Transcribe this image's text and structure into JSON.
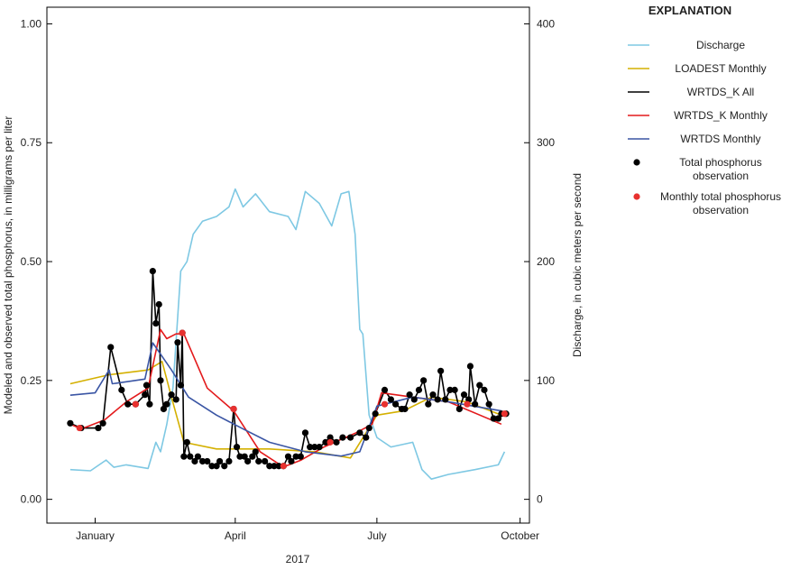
{
  "chart_data": {
    "type": "line",
    "x_label": "2017",
    "y_label": "Modeled and observed total phosphorus, in milligrams per liter",
    "y2_label": "Discharge, in cubic meters per second",
    "legend_title": "EXPLANATION",
    "legend": "right",
    "xlim": [
      -31,
      279
    ],
    "xticks": [
      {
        "value": 0,
        "label": "January"
      },
      {
        "value": 90,
        "label": "April"
      },
      {
        "value": 181,
        "label": "July"
      },
      {
        "value": 273,
        "label": "October"
      }
    ],
    "ylim": [
      -0.05,
      1.035
    ],
    "yticks": [
      {
        "value": 0,
        "label": "0.00"
      },
      {
        "value": 0.25,
        "label": "0.25"
      },
      {
        "value": 0.5,
        "label": "0.50"
      },
      {
        "value": 0.75,
        "label": "0.75"
      },
      {
        "value": 1,
        "label": "1.00"
      }
    ],
    "y2lim": [
      -20,
      414
    ],
    "y2ticks": [
      0,
      100,
      200,
      300,
      400
    ],
    "series": [
      {
        "name": "Discharge",
        "color": "#7ec8e3",
        "style": "line",
        "axis": "y2",
        "x": [
          -16,
          -3,
          7,
          12,
          20,
          34,
          39,
          42,
          46,
          50,
          55,
          59,
          63,
          69,
          78,
          86,
          90,
          95,
          103,
          112,
          124,
          129,
          135,
          144,
          152,
          158,
          163,
          167,
          170,
          172,
          176,
          181,
          190,
          204,
          210,
          216,
          227,
          244,
          259,
          263
        ],
        "values": [
          25,
          24,
          33,
          27,
          29,
          26,
          48,
          40,
          63,
          94,
          192,
          200,
          223,
          234,
          238,
          246,
          261,
          246,
          257,
          242,
          238,
          227,
          259,
          249,
          230,
          257,
          259,
          223,
          143,
          139,
          71,
          52,
          44,
          48,
          25,
          17,
          21,
          25,
          29,
          40
        ]
      },
      {
        "name": "LOADEST Monthly",
        "color": "#d4b000",
        "style": "line",
        "x": [
          -16,
          9,
          34,
          43,
          49,
          57,
          78,
          112,
          141,
          164,
          181,
          198,
          216,
          239,
          261
        ],
        "values": [
          0.243,
          0.262,
          0.272,
          0.29,
          0.215,
          0.12,
          0.106,
          0.106,
          0.1,
          0.087,
          0.177,
          0.186,
          0.215,
          0.205,
          0.177
        ]
      },
      {
        "name": "WRTDS_K All",
        "color": "#000000",
        "style": "line",
        "x": [
          -16,
          -9,
          2,
          5,
          10,
          17,
          21,
          26,
          32,
          33,
          35,
          37,
          39,
          41,
          42,
          44,
          46,
          49,
          52,
          53,
          55,
          56,
          57,
          59,
          61,
          64,
          66,
          69,
          72,
          75,
          78,
          80,
          83,
          86,
          89,
          91,
          93,
          96,
          98,
          101,
          103,
          105,
          109,
          112,
          115,
          118,
          121,
          124,
          126,
          129,
          132,
          135,
          138,
          141,
          144,
          148,
          151,
          155,
          159,
          164,
          170,
          174,
          176,
          180,
          186,
          190,
          193,
          197,
          199,
          202,
          205,
          208,
          211,
          214,
          217,
          220,
          222,
          225,
          228,
          231,
          234,
          237,
          240,
          241,
          244,
          247,
          250,
          253,
          256,
          259,
          261,
          264
        ],
        "values": [
          0.16,
          0.15,
          0.15,
          0.16,
          0.32,
          0.23,
          0.2,
          0.2,
          0.22,
          0.24,
          0.2,
          0.48,
          0.37,
          0.41,
          0.25,
          0.19,
          0.2,
          0.22,
          0.21,
          0.33,
          0.24,
          0.35,
          0.09,
          0.12,
          0.09,
          0.08,
          0.09,
          0.08,
          0.08,
          0.07,
          0.07,
          0.08,
          0.07,
          0.08,
          0.19,
          0.11,
          0.09,
          0.09,
          0.08,
          0.09,
          0.1,
          0.08,
          0.08,
          0.07,
          0.07,
          0.07,
          0.07,
          0.09,
          0.08,
          0.09,
          0.09,
          0.14,
          0.11,
          0.11,
          0.11,
          0.12,
          0.13,
          0.12,
          0.13,
          0.13,
          0.14,
          0.13,
          0.15,
          0.18,
          0.23,
          0.21,
          0.2,
          0.19,
          0.19,
          0.22,
          0.21,
          0.23,
          0.25,
          0.2,
          0.22,
          0.21,
          0.27,
          0.21,
          0.23,
          0.23,
          0.19,
          0.22,
          0.21,
          0.28,
          0.2,
          0.24,
          0.23,
          0.2,
          0.17,
          0.17,
          0.18,
          0.18
        ]
      },
      {
        "name": "WRTDS_K Monthly",
        "color": "#e31a1c",
        "style": "line",
        "x": [
          -16,
          -9,
          6,
          20,
          34,
          42,
          46,
          52,
          57,
          72,
          89,
          106,
          121,
          132,
          147,
          167,
          178,
          184,
          204,
          227,
          261
        ],
        "values": [
          0.158,
          0.148,
          0.167,
          0.205,
          0.234,
          0.357,
          0.338,
          0.348,
          0.348,
          0.234,
          0.186,
          0.1,
          0.068,
          0.082,
          0.11,
          0.139,
          0.158,
          0.224,
          0.215,
          0.205,
          0.158
        ]
      },
      {
        "name": "WRTDS Monthly",
        "color": "#3a55a4",
        "style": "line",
        "x": [
          -16,
          0,
          9,
          11,
          32,
          37,
          49,
          60,
          78,
          95,
          112,
          135,
          158,
          170,
          181,
          204,
          227,
          261
        ],
        "values": [
          0.219,
          0.224,
          0.272,
          0.243,
          0.253,
          0.329,
          0.272,
          0.215,
          0.177,
          0.148,
          0.12,
          0.1,
          0.091,
          0.1,
          0.196,
          0.215,
          0.205,
          0.186
        ]
      },
      {
        "name": "Total phosphorus observation",
        "color": "#000000",
        "style": "marker",
        "x": [
          -16,
          -9,
          2,
          5,
          10,
          17,
          21,
          26,
          32,
          33,
          35,
          37,
          39,
          41,
          42,
          44,
          46,
          49,
          52,
          53,
          55,
          56,
          57,
          59,
          61,
          64,
          66,
          69,
          72,
          75,
          78,
          80,
          83,
          86,
          89,
          91,
          93,
          96,
          98,
          101,
          103,
          105,
          109,
          112,
          115,
          118,
          121,
          124,
          126,
          129,
          132,
          135,
          138,
          141,
          144,
          148,
          151,
          155,
          159,
          164,
          170,
          174,
          176,
          180,
          186,
          190,
          193,
          197,
          199,
          202,
          205,
          208,
          211,
          214,
          217,
          220,
          222,
          225,
          228,
          231,
          234,
          237,
          240,
          241,
          244,
          247,
          250,
          253,
          256,
          259,
          261,
          264
        ],
        "values": [
          0.16,
          0.15,
          0.15,
          0.16,
          0.32,
          0.23,
          0.2,
          0.2,
          0.22,
          0.24,
          0.2,
          0.48,
          0.37,
          0.41,
          0.25,
          0.19,
          0.2,
          0.22,
          0.21,
          0.33,
          0.24,
          0.35,
          0.09,
          0.12,
          0.09,
          0.08,
          0.09,
          0.08,
          0.08,
          0.07,
          0.07,
          0.08,
          0.07,
          0.08,
          0.19,
          0.11,
          0.09,
          0.09,
          0.08,
          0.09,
          0.1,
          0.08,
          0.08,
          0.07,
          0.07,
          0.07,
          0.07,
          0.09,
          0.08,
          0.09,
          0.09,
          0.14,
          0.11,
          0.11,
          0.11,
          0.12,
          0.13,
          0.12,
          0.13,
          0.13,
          0.14,
          0.13,
          0.15,
          0.18,
          0.23,
          0.21,
          0.2,
          0.19,
          0.19,
          0.22,
          0.21,
          0.23,
          0.25,
          0.2,
          0.22,
          0.21,
          0.27,
          0.21,
          0.23,
          0.23,
          0.19,
          0.22,
          0.21,
          0.28,
          0.2,
          0.24,
          0.23,
          0.2,
          0.17,
          0.17,
          0.18,
          0.18
        ]
      },
      {
        "name": "Monthly total phosphorus observation",
        "color": "#e8312f",
        "style": "marker",
        "x": [
          -10,
          26,
          56,
          89,
          121,
          151,
          186,
          239,
          263
        ],
        "values": [
          0.15,
          0.2,
          0.35,
          0.19,
          0.07,
          0.12,
          0.2,
          0.2,
          0.18
        ]
      }
    ]
  }
}
